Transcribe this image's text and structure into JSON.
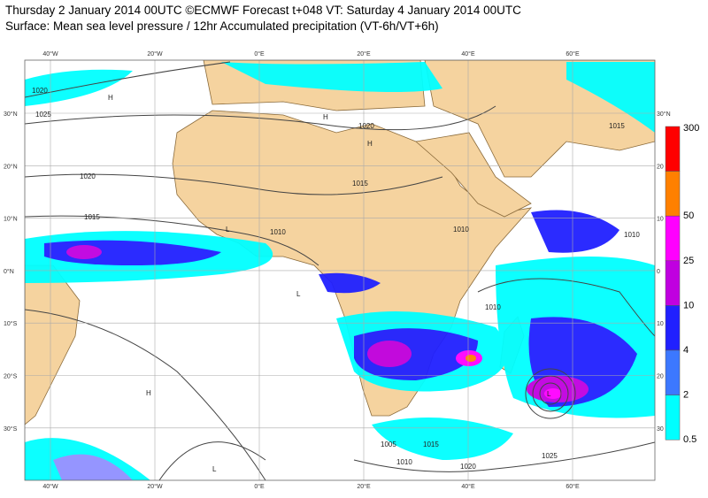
{
  "header": {
    "title": "Thursday 2 January 2014 00UTC ©ECMWF Forecast t+048 VT: Saturday 4 January 2014 00UTC",
    "subtitle": "Surface: Mean sea level pressure / 12hr Accumulated precipitation (VT-6h/VT+6h)"
  },
  "map": {
    "lon_labels": [
      "40°W",
      "20°W",
      "0°E",
      "20°E",
      "40°E",
      "60°E"
    ],
    "lat_labels": [
      "30°N",
      "20°N",
      "10°N",
      "0°N",
      "10°S",
      "20°S",
      "30°S"
    ],
    "right_lat_labels": [
      "30°N",
      "20",
      "10",
      "0",
      "10",
      "20",
      "30"
    ],
    "isobar_labels": [
      "1020",
      "1025",
      "1020",
      "1015",
      "1010",
      "1020",
      "1015",
      "1010",
      "1010",
      "1010",
      "1005",
      "1010",
      "1015",
      "1020",
      "1025",
      "1015"
    ],
    "pressure_centres": [
      "H",
      "H",
      "H",
      "L",
      "L",
      "L",
      "H",
      "L"
    ]
  },
  "colorbar": {
    "labels": [
      "300",
      "50",
      "25",
      "10",
      "4",
      "2",
      "0.5"
    ],
    "colors": [
      "#ff0000",
      "#ff8000",
      "#ff00ff",
      "#c000e0",
      "#2020ff",
      "#3c78ff",
      "#00ffff"
    ]
  }
}
